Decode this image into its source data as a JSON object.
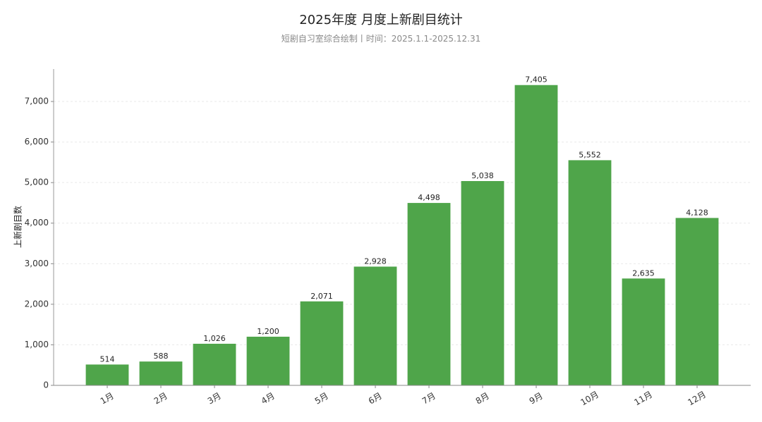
{
  "chart_data": {
    "type": "bar",
    "title": "2025年度 月度上新剧目统计",
    "subtitle": "短剧自习室综合绘制丨时间：2025.1.1-2025.12.31",
    "xlabel": "",
    "ylabel": "上新剧目数",
    "categories": [
      "1月",
      "2月",
      "3月",
      "4月",
      "5月",
      "6月",
      "7月",
      "8月",
      "9月",
      "10月",
      "11月",
      "12月"
    ],
    "values": [
      514,
      588,
      1026,
      1200,
      2071,
      2928,
      4498,
      5038,
      7405,
      5552,
      2635,
      4128
    ],
    "ylim": [
      0,
      7800
    ],
    "yticks": [
      0,
      1000,
      2000,
      3000,
      4000,
      5000,
      6000,
      7000
    ],
    "grid": true,
    "data_labels": true,
    "color": "#4fa54a"
  }
}
